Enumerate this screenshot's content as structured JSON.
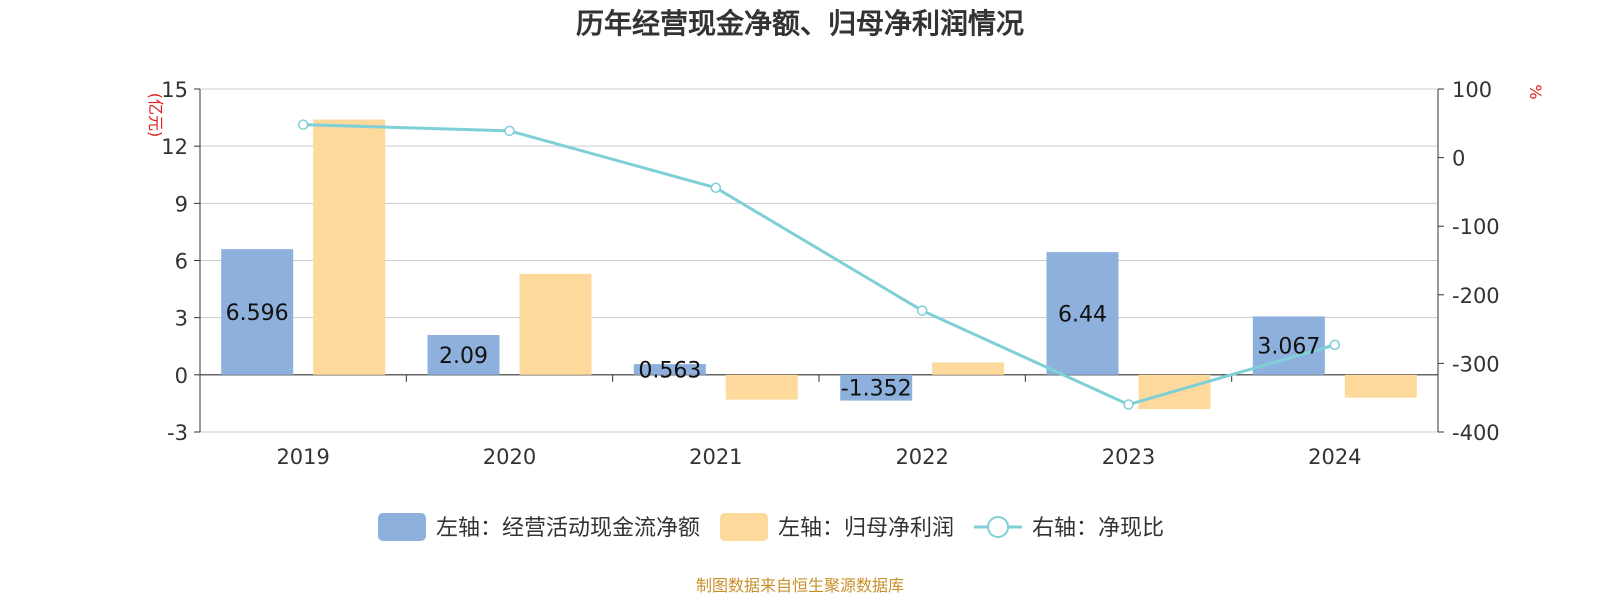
{
  "chart_data": {
    "type": "bar",
    "title": "历年经营现金净额、归母净利润情况",
    "categories": [
      "2019",
      "2020",
      "2021",
      "2022",
      "2023",
      "2024"
    ],
    "left_axis": {
      "unit": "(亿元)",
      "ylim": [
        -3,
        15
      ],
      "ticks": [
        -3,
        0,
        3,
        6,
        9,
        12,
        15
      ]
    },
    "right_axis": {
      "unit": "%",
      "ylim": [
        -400,
        100
      ],
      "ticks": [
        -400,
        -300,
        -200,
        -100,
        0,
        100
      ]
    },
    "series": [
      {
        "name": "左轴：经营活动现金流净额",
        "type": "bar",
        "axis": "left",
        "color": "#8eb0dc",
        "values": [
          6.596,
          2.09,
          0.563,
          -1.352,
          6.44,
          3.067
        ],
        "labels": [
          "6.596",
          "2.09",
          "0.563",
          "-1.352",
          "6.44",
          "3.067"
        ]
      },
      {
        "name": "左轴：归母净利润",
        "type": "bar",
        "axis": "left",
        "color": "#fdd99b",
        "values": [
          13.4,
          5.3,
          -1.3,
          0.65,
          -1.8,
          -1.2
        ]
      },
      {
        "name": "右轴：净现比",
        "type": "line",
        "axis": "right",
        "color": "#7ed0d6",
        "values": [
          48,
          39,
          -44,
          -223,
          -360,
          -273
        ]
      }
    ],
    "grid": true,
    "legend_position": "bottom"
  },
  "source_note": "制图数据来自恒生聚源数据库"
}
